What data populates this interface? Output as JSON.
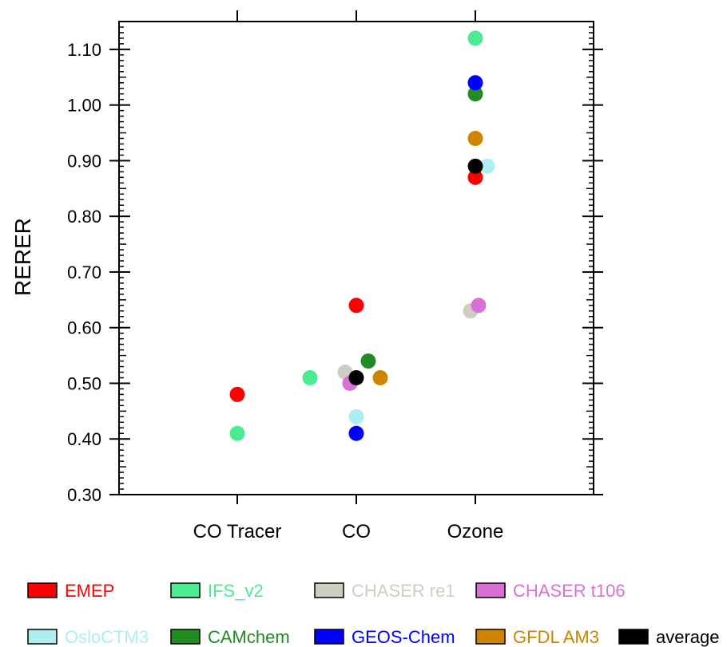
{
  "chart_data": {
    "type": "scatter",
    "ylabel": "RERER",
    "categories": [
      "CO Tracer",
      "CO",
      "Ozone"
    ],
    "ylim": [
      0.3,
      1.15
    ],
    "yticks": [
      "0.30",
      "0.40",
      "0.50",
      "0.60",
      "0.70",
      "0.80",
      "0.90",
      "1.00",
      "1.10"
    ],
    "grid": false,
    "legend_position": "bottom",
    "series": [
      {
        "name": "EMEP",
        "color": "#ff0000",
        "values": [
          0.48,
          0.64,
          0.87
        ]
      },
      {
        "name": "IFS_v2",
        "color": "#4ceb91",
        "values": [
          0.41,
          0.51,
          1.12
        ]
      },
      {
        "name": "CHASER re1",
        "color": "#cdcdc1",
        "values": [
          null,
          0.52,
          0.63
        ]
      },
      {
        "name": "CHASER t106",
        "color": "#da70d6",
        "values": [
          null,
          0.5,
          0.64
        ]
      },
      {
        "name": "OsloCTM3",
        "color": "#aeeef0",
        "values": [
          null,
          0.44,
          0.89
        ]
      },
      {
        "name": "CAMchem",
        "color": "#228b22",
        "values": [
          null,
          0.54,
          1.02
        ]
      },
      {
        "name": "GEOS-Chem",
        "color": "#0000ff",
        "values": [
          null,
          0.41,
          1.04
        ]
      },
      {
        "name": "GFDL AM3",
        "color": "#cd8500",
        "values": [
          null,
          0.51,
          0.94
        ]
      },
      {
        "name": "average",
        "color": "#000000",
        "values": [
          null,
          0.51,
          0.89
        ]
      }
    ]
  }
}
